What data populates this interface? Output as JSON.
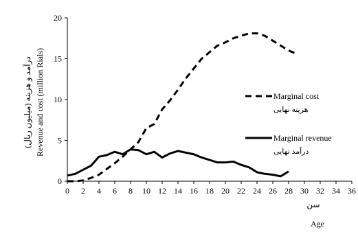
{
  "chart_data": {
    "type": "line",
    "xlabel": "Age",
    "xlabel_fa": "سن",
    "ylabel": "Revenue and cost (million Rials)",
    "ylabel_fa": "درآمد و هزینه (میلیون ریال)",
    "xlim": [
      0,
      36
    ],
    "ylim": [
      0,
      20
    ],
    "xticks": [
      0,
      2,
      4,
      6,
      8,
      10,
      12,
      14,
      16,
      18,
      20,
      22,
      24,
      26,
      28,
      30,
      32,
      34,
      36
    ],
    "yticks": [
      0,
      5,
      10,
      15,
      20
    ],
    "grid": false,
    "legend": "right",
    "series": [
      {
        "name": "Marginal cost",
        "name_fa": "هزینه نهایی",
        "style": "dashed",
        "color": "#000000",
        "x": [
          0,
          1,
          2,
          3,
          4,
          5,
          6,
          7,
          8,
          9,
          10,
          11,
          12,
          13,
          14,
          15,
          16,
          17,
          18,
          19,
          20,
          21,
          22,
          23,
          24,
          25,
          26,
          27,
          28,
          29
        ],
        "y": [
          0.0,
          0.0,
          0.1,
          0.4,
          0.8,
          1.5,
          2.2,
          3.0,
          3.9,
          4.8,
          6.5,
          7.0,
          8.8,
          9.9,
          11.2,
          12.6,
          13.8,
          15.0,
          15.8,
          16.6,
          17.0,
          17.5,
          17.8,
          18.1,
          18.1,
          17.8,
          17.2,
          16.6,
          16.0,
          15.6
        ]
      },
      {
        "name": "Marginal revenue",
        "name_fa": "درآمد نهایی",
        "style": "solid",
        "color": "#000000",
        "x": [
          0,
          1,
          2,
          3,
          4,
          5,
          6,
          7,
          8,
          9,
          10,
          11,
          12,
          13,
          14,
          15,
          16,
          17,
          18,
          19,
          20,
          21,
          22,
          23,
          24,
          25,
          26,
          27,
          28
        ],
        "y": [
          0.7,
          0.9,
          1.4,
          1.9,
          3.0,
          3.2,
          3.6,
          3.3,
          3.9,
          3.8,
          3.3,
          3.6,
          2.9,
          3.4,
          3.7,
          3.5,
          3.3,
          2.9,
          2.6,
          2.3,
          2.3,
          2.4,
          2.0,
          1.7,
          1.1,
          0.9,
          0.8,
          0.6,
          1.2
        ]
      }
    ]
  }
}
